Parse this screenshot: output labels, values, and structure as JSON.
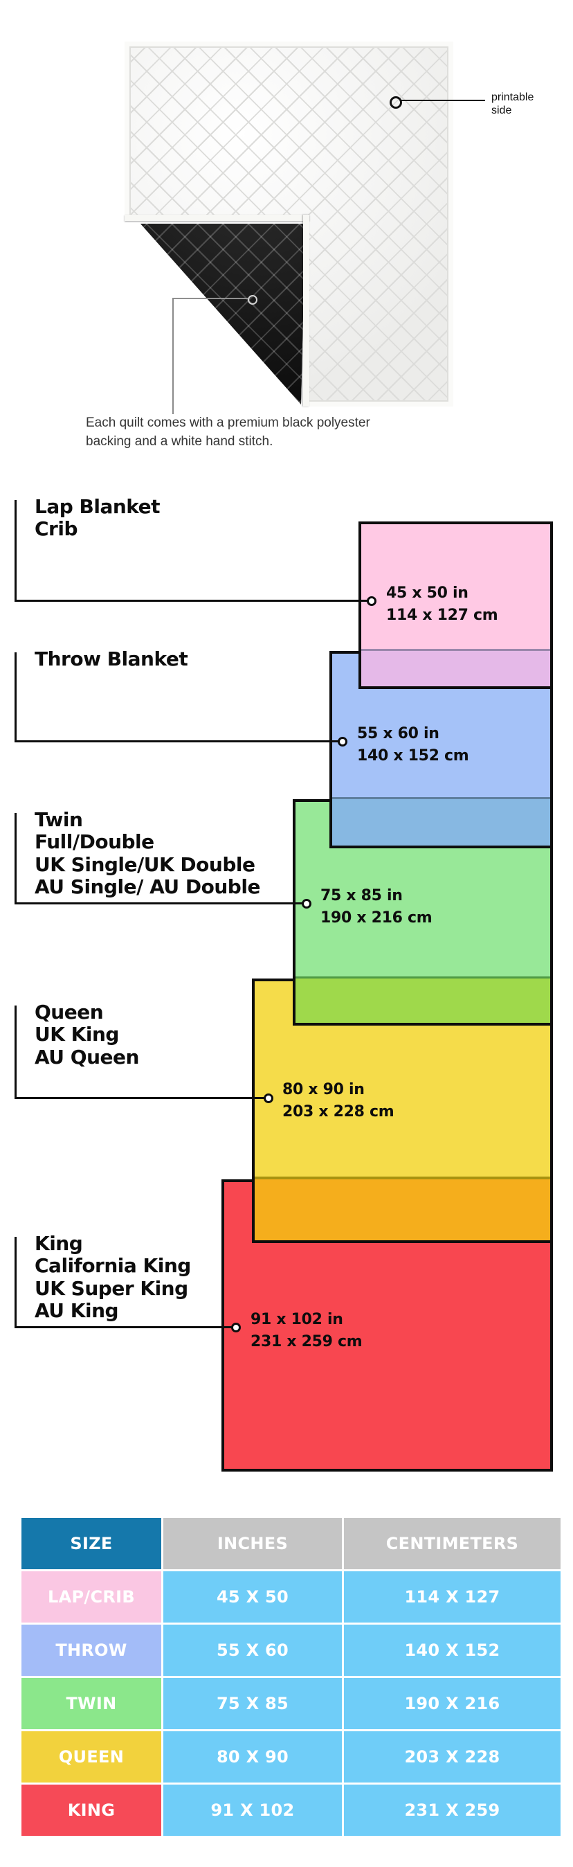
{
  "quilt": {
    "printable_label_line1": "printable",
    "printable_label_line2": "side",
    "caption_line1": "Each quilt comes with a premium black polyester",
    "caption_line2": "backing and a white hand stitch.",
    "front_color": "#f1f1ef",
    "backing_color": "#161616"
  },
  "diagram": {
    "items": [
      {
        "labels": [
          "Lap Blanket",
          "Crib"
        ],
        "inches": "45 x 50 in",
        "cm": "114 x 127 cm",
        "color": "#FFC9E4",
        "overlap_color": "#E5B9E8"
      },
      {
        "labels": [
          "Throw Blanket"
        ],
        "inches": "55 x 60 in",
        "cm": "140 x 152 cm",
        "color": "#A5C2F8",
        "overlap_color": "#87B8E2"
      },
      {
        "labels": [
          "Twin",
          "Full/Double",
          "UK Single/UK Double",
          "AU Single/ AU Double"
        ],
        "inches": "75 x 85 in",
        "cm": "190 x 216 cm",
        "color": "#98E898",
        "overlap_color": "#9FD94B"
      },
      {
        "labels": [
          "Queen",
          "UK King",
          "AU Queen"
        ],
        "inches": "80 x 90 in",
        "cm": "203 x 228 cm",
        "color": "#F5DC4A",
        "overlap_color": "#F5AE1C"
      },
      {
        "labels": [
          "King",
          "California King",
          "UK Super King",
          "AU King"
        ],
        "inches": "91 x 102 in",
        "cm": "231 x 259 cm",
        "color": "#F84750",
        "overlap_color": null
      }
    ]
  },
  "table": {
    "header": {
      "size": "SIZE",
      "inches": "INCHES",
      "cm": "CENTIMETERS"
    },
    "header_size_bg": "#1578AB",
    "header_gray_bg": "#C5C5C5",
    "data_cell_bg": "#6FCDF8",
    "rows": [
      {
        "size": "LAP/CRIB",
        "inches": "45 X 50",
        "cm": "114 X 127",
        "color": "#FAC7E3"
      },
      {
        "size": "THROW",
        "inches": "55 X 60",
        "cm": "140 X 152",
        "color": "#A3BCF8"
      },
      {
        "size": "TWIN",
        "inches": "75 X 85",
        "cm": "190 X 216",
        "color": "#8BE78B"
      },
      {
        "size": "QUEEN",
        "inches": "80 X 90",
        "cm": "203 X 228",
        "color": "#F2D23D"
      },
      {
        "size": "KING",
        "inches": "91 X 102",
        "cm": "231 X 259",
        "color": "#F64A57"
      }
    ]
  }
}
